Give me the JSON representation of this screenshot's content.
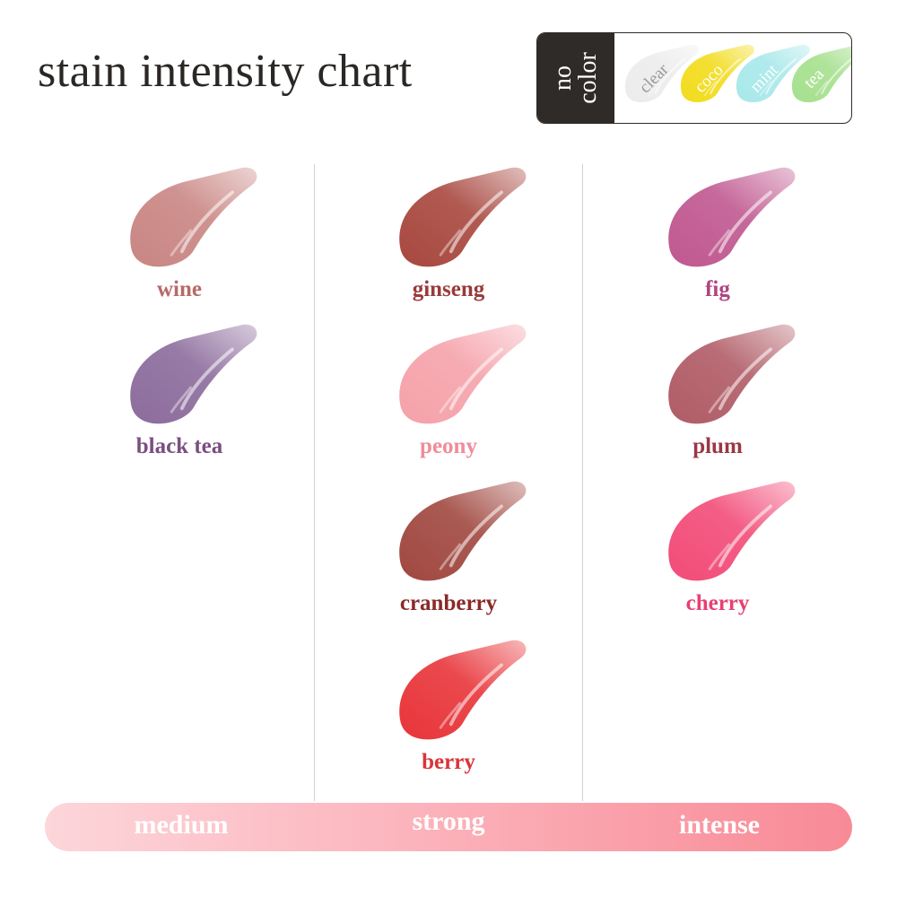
{
  "title": "stain intensity chart",
  "no_color": {
    "label": "no\ncolor",
    "items": [
      {
        "name": "clear",
        "color": "#ececec",
        "text_color": "#9a9a9a"
      },
      {
        "name": "coco",
        "color": "#f2dc1e",
        "text_color": "#ffffff"
      },
      {
        "name": "mint",
        "color": "#a8e8ea",
        "text_color": "#ffffff"
      },
      {
        "name": "tea",
        "color": "#a6e08e",
        "text_color": "#ffffff"
      }
    ]
  },
  "columns": [
    {
      "level": "medium",
      "shades": [
        {
          "name": "wine",
          "color": "#c98683",
          "label_color": "#b86a68"
        },
        {
          "name": "black tea",
          "color": "#8c6c9c",
          "label_color": "#7a4f80"
        }
      ]
    },
    {
      "level": "strong",
      "shades": [
        {
          "name": "ginseng",
          "color": "#a8483f",
          "label_color": "#9a3a3a"
        },
        {
          "name": "peony",
          "color": "#f5a2aa",
          "label_color": "#f08c9a"
        },
        {
          "name": "cranberry",
          "color": "#a04840",
          "label_color": "#8a2a28"
        },
        {
          "name": "berry",
          "color": "#e8353a",
          "label_color": "#d8353a"
        }
      ]
    },
    {
      "level": "intense",
      "shades": [
        {
          "name": "fig",
          "color": "#c05890",
          "label_color": "#b04480"
        },
        {
          "name": "plum",
          "color": "#b05c66",
          "label_color": "#983848"
        },
        {
          "name": "cherry",
          "color": "#f24c78",
          "label_color": "#e84070"
        }
      ]
    }
  ],
  "scale": {
    "labels": [
      "medium",
      "strong",
      "intense"
    ],
    "colors": [
      "#fcd6da",
      "#fcb8c0",
      "#f88a96"
    ]
  }
}
